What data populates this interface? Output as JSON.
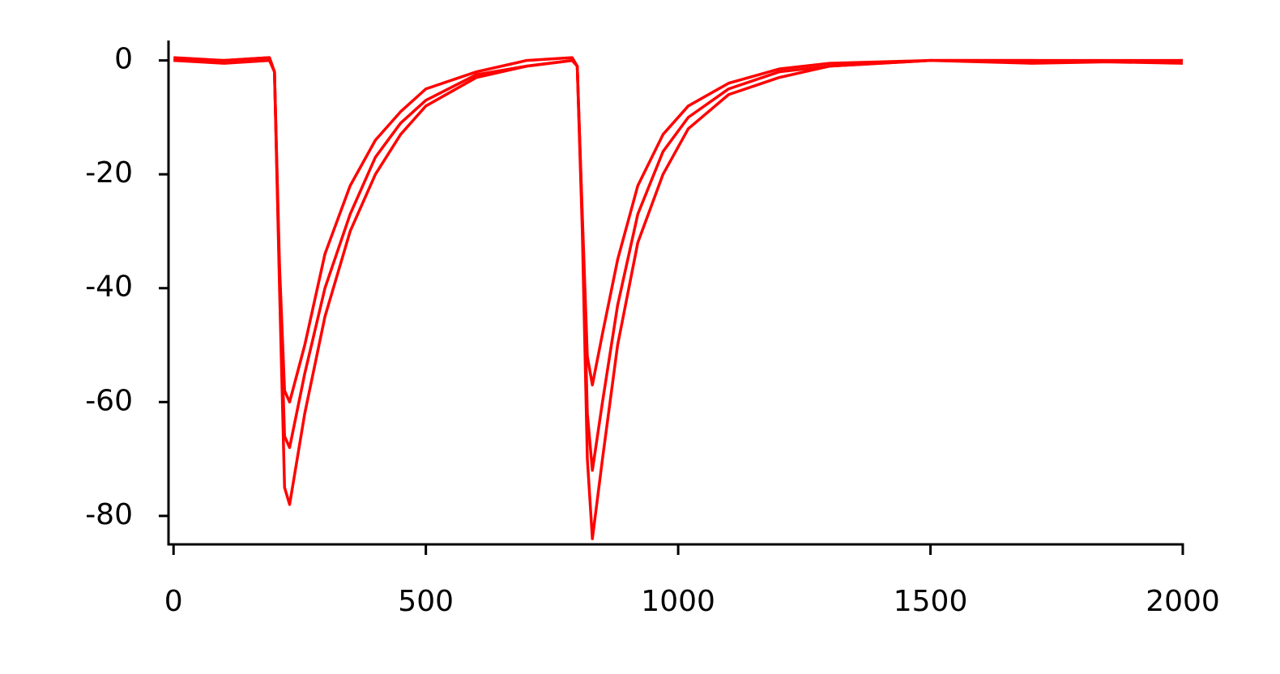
{
  "chart_data": {
    "type": "line",
    "x": [
      0,
      100,
      190,
      200,
      210,
      220,
      230,
      260,
      300,
      350,
      400,
      450,
      500,
      600,
      700,
      790,
      800,
      810,
      820,
      830,
      850,
      880,
      920,
      970,
      1020,
      1100,
      1200,
      1300,
      1500,
      1700,
      2000
    ],
    "series": [
      {
        "color": "#ff0000",
        "values": [
          0,
          0,
          0.5,
          -2,
          -40,
          -75,
          -78,
          -62,
          -45,
          -30,
          -20,
          -13,
          -8,
          -3,
          -1,
          0,
          -1,
          -30,
          -70,
          -84,
          -70,
          -50,
          -32,
          -20,
          -12,
          -6,
          -3,
          -1,
          0,
          0,
          0
        ]
      },
      {
        "color": "#ff0000",
        "values": [
          0,
          -0.5,
          0,
          -2,
          -38,
          -66,
          -68,
          -55,
          -40,
          -27,
          -17,
          -11,
          -7,
          -2.5,
          -1,
          0,
          -1,
          -28,
          -62,
          -72,
          -60,
          -43,
          -27,
          -16,
          -10,
          -5,
          -2,
          -1,
          0,
          -0.5,
          0
        ]
      },
      {
        "color": "#ff0000",
        "values": [
          0.5,
          0,
          0.5,
          -2,
          -36,
          -58,
          -60,
          -50,
          -34,
          -22,
          -14,
          -9,
          -5,
          -2,
          0,
          0.5,
          -1,
          -27,
          -52,
          -57,
          -48,
          -35,
          -22,
          -13,
          -8,
          -4,
          -1.5,
          -0.5,
          0,
          0,
          -0.5
        ]
      }
    ],
    "xlim": [
      -10,
      2000
    ],
    "xticks": [
      0,
      500,
      1000,
      1500,
      2000
    ],
    "ylim": [
      -85,
      3.5
    ],
    "yticks": [
      0,
      -20,
      -40,
      -60,
      -80
    ],
    "grid": false
  }
}
